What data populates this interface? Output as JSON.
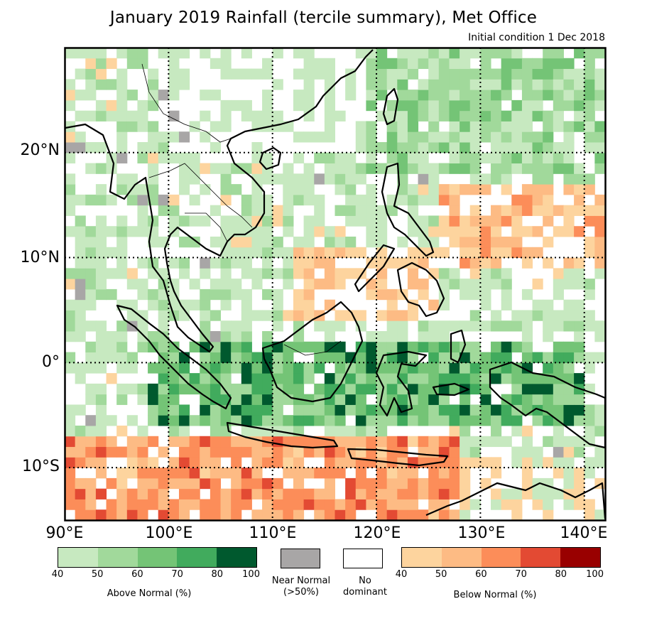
{
  "title": "January 2019 Rainfall (tercile summary), Met Office",
  "subtitle": "Initial condition 1 Dec 2018",
  "map": {
    "lon_min": 90,
    "lon_max": 142,
    "lat_min": -15,
    "lat_max": 30,
    "lat_labels": [
      "20°N",
      "10°N",
      "0°",
      "10°S"
    ],
    "lon_labels": [
      "90°E",
      "100°E",
      "110°E",
      "120°E",
      "130°E",
      "140°E"
    ],
    "gridline_lons": [
      100,
      110,
      120,
      130,
      140
    ],
    "gridline_lats": [
      20,
      10,
      0,
      -10
    ]
  },
  "legend": {
    "above_normal": {
      "title": "Above Normal (%)",
      "ticks": [
        "40",
        "50",
        "60",
        "70",
        "80",
        "100"
      ],
      "colors": [
        "#c7e9c0",
        "#a1d99b",
        "#74c476",
        "#41ab5d",
        "#00592e"
      ]
    },
    "near_normal": {
      "label": "Near Normal",
      "sublabel": "(>50%)",
      "color": "#a8a6a6"
    },
    "no_dominant": {
      "label": "No",
      "sublabel": "dominant",
      "color": "#ffffff"
    },
    "below_normal": {
      "title": "Below Normal (%)",
      "ticks": [
        "40",
        "50",
        "60",
        "70",
        "80",
        "100"
      ],
      "colors": [
        "#fdd49e",
        "#fdbb84",
        "#fc8d59",
        "#e34a33",
        "#990000"
      ]
    }
  }
}
